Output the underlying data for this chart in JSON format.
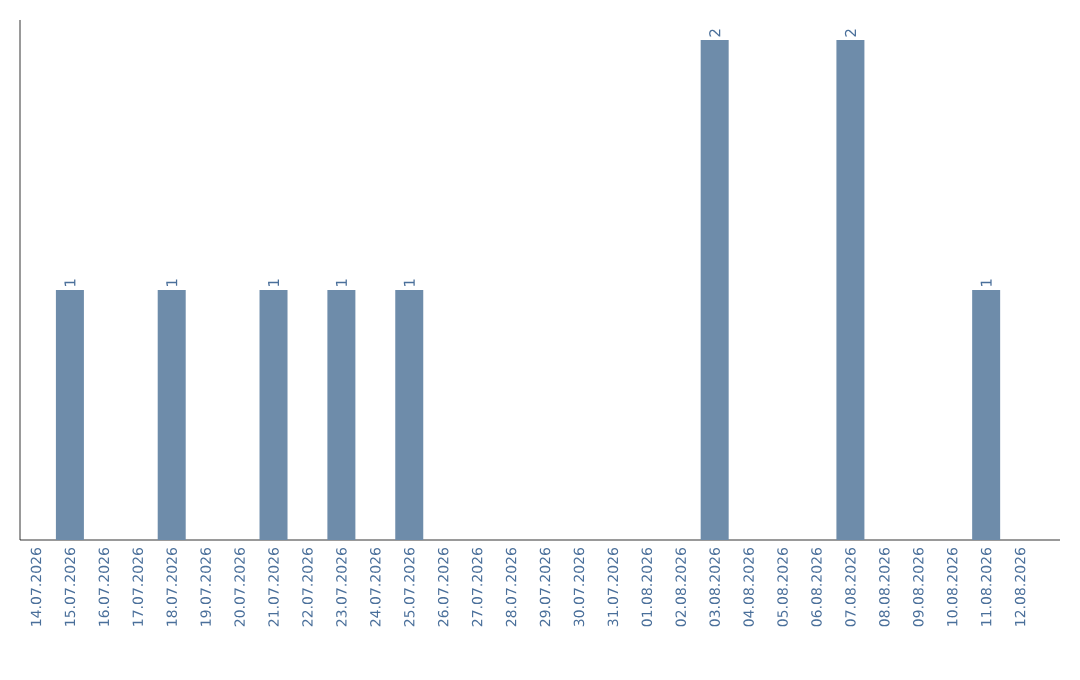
{
  "chart_data": {
    "type": "bar",
    "categories": [
      "14.07.2026",
      "15.07.2026",
      "16.07.2026",
      "17.07.2026",
      "18.07.2026",
      "19.07.2026",
      "20.07.2026",
      "21.07.2026",
      "22.07.2026",
      "23.07.2026",
      "24.07.2026",
      "25.07.2026",
      "26.07.2026",
      "27.07.2026",
      "28.07.2026",
      "29.07.2026",
      "30.07.2026",
      "31.07.2026",
      "01.08.2026",
      "02.08.2026",
      "03.08.2026",
      "04.08.2026",
      "05.08.2026",
      "06.08.2026",
      "07.08.2026",
      "08.08.2026",
      "09.08.2026",
      "10.08.2026",
      "11.08.2026",
      "12.08.2026"
    ],
    "values": [
      0,
      1,
      0,
      0,
      1,
      0,
      0,
      1,
      0,
      1,
      0,
      1,
      0,
      0,
      0,
      0,
      0,
      0,
      0,
      0,
      2,
      0,
      0,
      0,
      2,
      0,
      0,
      0,
      1,
      0
    ],
    "value_labels": [
      null,
      "1",
      null,
      null,
      "1",
      null,
      null,
      "1",
      null,
      "1",
      null,
      "1",
      null,
      null,
      null,
      null,
      null,
      null,
      null,
      null,
      "2",
      null,
      null,
      null,
      "2",
      null,
      null,
      null,
      "1",
      null
    ],
    "color": "#6e8caa"
  }
}
